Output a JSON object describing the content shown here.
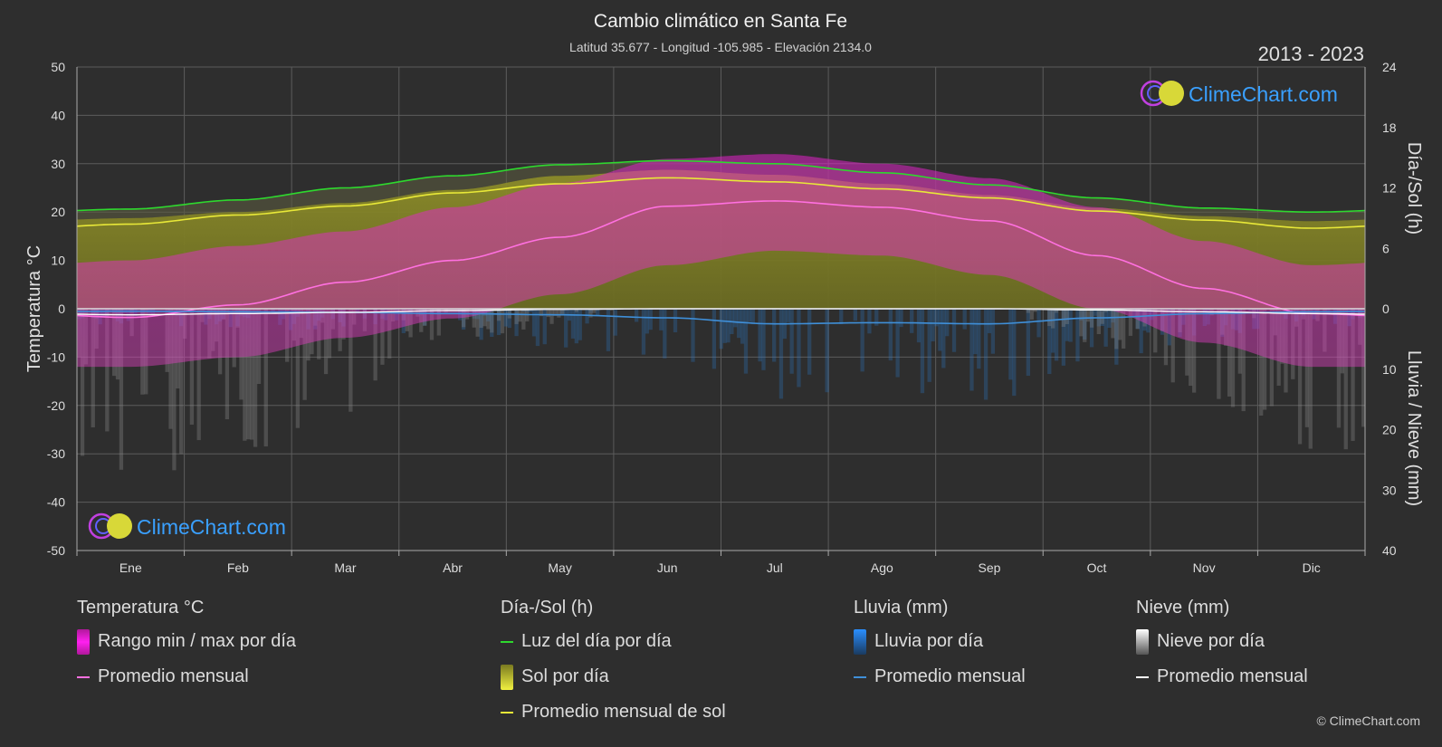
{
  "chart_data": {
    "type": "area",
    "title": "Cambio climático en Santa Fe",
    "subtitle": "Latitud 35.677 - Longitud -105.985 - Elevación 2134.0",
    "period": "2013 - 2023",
    "brand": "ClimeChart.com",
    "copyright": "© ClimeChart.com",
    "categories": [
      "Ene",
      "Feb",
      "Mar",
      "Abr",
      "May",
      "Jun",
      "Jul",
      "Ago",
      "Sep",
      "Oct",
      "Nov",
      "Dic"
    ],
    "y_left": {
      "label": "Temperatura °C",
      "min": -50,
      "max": 50,
      "ticks": [
        "50",
        "40",
        "30",
        "20",
        "10",
        "0",
        "-10",
        "-20",
        "-30",
        "-40",
        "-50"
      ]
    },
    "y_right_top": {
      "label": "Día-/Sol (h)",
      "min": 0,
      "max": 24,
      "ticks": [
        "24",
        "18",
        "12",
        "6",
        "0"
      ]
    },
    "y_right_bottom": {
      "label": "Lluvia / Nieve (mm)",
      "min": 0,
      "max": 40,
      "ticks": [
        "0",
        "10",
        "20",
        "30",
        "40"
      ]
    },
    "series": {
      "temp_monthly_avg": [
        -1.8,
        0.8,
        5.5,
        10.0,
        14.8,
        21.2,
        22.3,
        21.0,
        18.2,
        11.0,
        4.2,
        -1.0
      ],
      "temp_daily_max": [
        10,
        13,
        16,
        21,
        26,
        31,
        32,
        30,
        27,
        21,
        14,
        9
      ],
      "temp_daily_min": [
        -12,
        -10,
        -6,
        -2,
        3,
        9,
        12,
        11,
        7,
        0,
        -7,
        -12
      ],
      "daylight_hours": [
        9.9,
        10.8,
        12.0,
        13.2,
        14.3,
        14.7,
        14.4,
        13.5,
        12.3,
        11.0,
        10.0,
        9.6
      ],
      "sunshine_daily_hours": [
        9.0,
        9.6,
        10.5,
        11.8,
        13.2,
        13.8,
        13.3,
        12.4,
        11.3,
        10.0,
        9.2,
        8.7
      ],
      "sunshine_monthly_avg": [
        8.4,
        9.3,
        10.2,
        11.5,
        12.4,
        13.0,
        12.6,
        11.9,
        11.0,
        9.7,
        8.8,
        8.0
      ],
      "rain_monthly_avg_mm": [
        0.4,
        0.5,
        0.6,
        0.8,
        1.0,
        1.5,
        2.5,
        2.3,
        2.5,
        1.5,
        0.8,
        0.5
      ],
      "snow_monthly_avg_mm": [
        1.0,
        0.8,
        0.6,
        0.3,
        0.1,
        0.0,
        0.0,
        0.0,
        0.0,
        0.2,
        0.5,
        0.8
      ]
    },
    "colors": {
      "background": "#2e2e2e",
      "grid": "#5c5c5c",
      "temp_range": "#e020c8",
      "temp_avg": "#ff70e0",
      "daylight": "#2ed82e",
      "sunshine": "#9a9a28",
      "sunshine_avg": "#e8e838",
      "rain": "#2a7fd0",
      "rain_avg": "#3f8fd8",
      "snow": "#8a8a8a",
      "snow_avg": "#ffffff",
      "brand": "#3aa0ff"
    }
  },
  "legend": [
    {
      "title": "Temperatura °C",
      "items": [
        {
          "label": "Rango min / max por día",
          "swatch": "bar",
          "color": "#e020c8"
        },
        {
          "label": "Promedio mensual",
          "swatch": "line",
          "color": "#ff70e0"
        }
      ]
    },
    {
      "title": "Día-/Sol (h)",
      "items": [
        {
          "label": "Luz del día por día",
          "swatch": "line",
          "color": "#2ed82e"
        },
        {
          "label": "Sol por día",
          "swatch": "bar",
          "color": "#c8c832"
        },
        {
          "label": "Promedio mensual de sol",
          "swatch": "line",
          "color": "#e8e838"
        }
      ]
    },
    {
      "title": "Lluvia (mm)",
      "items": [
        {
          "label": "Lluvia por día",
          "swatch": "bar",
          "color": "#2a7fd0"
        },
        {
          "label": "Promedio mensual",
          "swatch": "line",
          "color": "#3f8fd8"
        }
      ]
    },
    {
      "title": "Nieve (mm)",
      "items": [
        {
          "label": "Nieve por día",
          "swatch": "bar",
          "color": "#dddddd"
        },
        {
          "label": "Promedio mensual",
          "swatch": "line",
          "color": "#ffffff"
        }
      ]
    }
  ]
}
